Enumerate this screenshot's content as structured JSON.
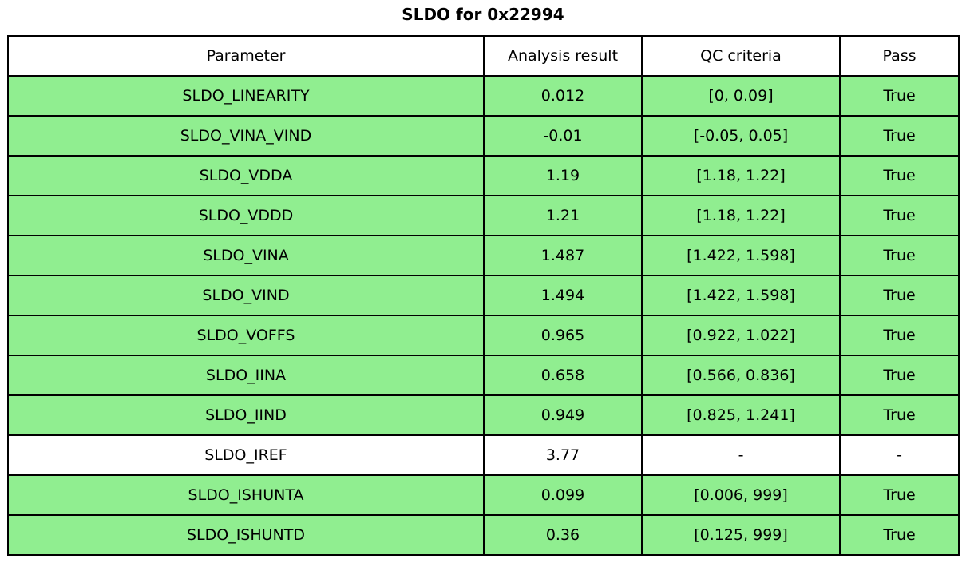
{
  "page": {
    "background": "#FFFFFF"
  },
  "chart_data": {
    "type": "table",
    "title": "SLDO for 0x22994",
    "columns": [
      "Parameter",
      "Analysis result",
      "QC criteria",
      "Pass"
    ],
    "rows": [
      {
        "cells": [
          "SLDO_LINEARITY",
          "0.012",
          "[0, 0.09]",
          "True"
        ],
        "row_color": "#90EE90"
      },
      {
        "cells": [
          "SLDO_VINA_VIND",
          "-0.01",
          "[-0.05, 0.05]",
          "True"
        ],
        "row_color": "#90EE90"
      },
      {
        "cells": [
          "SLDO_VDDA",
          "1.19",
          "[1.18, 1.22]",
          "True"
        ],
        "row_color": "#90EE90"
      },
      {
        "cells": [
          "SLDO_VDDD",
          "1.21",
          "[1.18, 1.22]",
          "True"
        ],
        "row_color": "#90EE90"
      },
      {
        "cells": [
          "SLDO_VINA",
          "1.487",
          "[1.422, 1.598]",
          "True"
        ],
        "row_color": "#90EE90"
      },
      {
        "cells": [
          "SLDO_VIND",
          "1.494",
          "[1.422, 1.598]",
          "True"
        ],
        "row_color": "#90EE90"
      },
      {
        "cells": [
          "SLDO_VOFFS",
          "0.965",
          "[0.922, 1.022]",
          "True"
        ],
        "row_color": "#90EE90"
      },
      {
        "cells": [
          "SLDO_IINA",
          "0.658",
          "[0.566, 0.836]",
          "True"
        ],
        "row_color": "#90EE90"
      },
      {
        "cells": [
          "SLDO_IIND",
          "0.949",
          "[0.825, 1.241]",
          "True"
        ],
        "row_color": "#90EE90"
      },
      {
        "cells": [
          "SLDO_IREF",
          "3.77",
          "-",
          "-"
        ],
        "row_color": "#FFFFFF"
      },
      {
        "cells": [
          "SLDO_ISHUNTA",
          "0.099",
          "[0.006, 999]",
          "True"
        ],
        "row_color": "#90EE90"
      },
      {
        "cells": [
          "SLDO_ISHUNTD",
          "0.36",
          "[0.125, 999]",
          "True"
        ],
        "row_color": "#90EE90"
      }
    ],
    "layout": {
      "header_color": "#FFFFFF",
      "pass_row_color": "#90EE90",
      "neutral_row_color": "#FFFFFF",
      "border_color": "#000000",
      "text_color": "#000000",
      "grid": true
    }
  }
}
